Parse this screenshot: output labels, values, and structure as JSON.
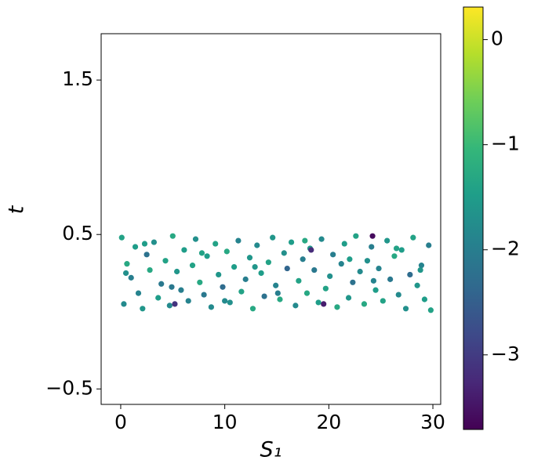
{
  "chart_data": {
    "type": "scatter",
    "xlabel": "S₁",
    "ylabel": "t",
    "xlim": [
      -1.88,
      30.75
    ],
    "ylim": [
      -0.6,
      1.8
    ],
    "xticks": [
      0,
      10,
      20,
      30
    ],
    "yticks": [
      {
        "value": -0.5,
        "label": "−0.5"
      },
      0.5,
      1.5
    ],
    "colormap": "viridis",
    "clim": [
      -3.71,
      0.31
    ],
    "cticks": [
      {
        "value": -3,
        "label": "−3"
      },
      {
        "value": -2,
        "label": "−2"
      },
      {
        "value": -1,
        "label": "−1"
      },
      0
    ],
    "x": [
      0.1,
      0.3,
      0.6,
      1.0,
      1.4,
      1.7,
      2.1,
      2.5,
      2.8,
      3.2,
      3.6,
      3.9,
      4.3,
      4.7,
      5.0,
      5.4,
      5.8,
      6.1,
      6.5,
      6.9,
      7.2,
      7.6,
      8.0,
      8.3,
      8.7,
      9.1,
      9.4,
      9.8,
      10.2,
      10.5,
      10.9,
      11.3,
      11.6,
      12.0,
      12.4,
      12.7,
      13.1,
      13.5,
      13.8,
      14.2,
      14.6,
      14.9,
      15.3,
      15.7,
      16.0,
      16.4,
      16.8,
      17.1,
      17.5,
      17.9,
      18.2,
      18.6,
      19.0,
      19.3,
      19.7,
      20.1,
      20.4,
      20.8,
      21.2,
      21.5,
      21.9,
      22.3,
      22.6,
      23.0,
      23.4,
      23.7,
      24.1,
      24.5,
      24.8,
      25.2,
      25.6,
      25.9,
      26.3,
      26.7,
      27.0,
      27.4,
      27.8,
      28.1,
      28.5,
      28.9,
      29.2,
      29.6,
      29.8,
      0.5,
      2.3,
      4.9,
      7.8,
      10.0,
      12.9,
      15.1,
      17.7,
      19.5,
      22.0,
      24.3,
      26.5,
      28.8,
      5.2,
      18.3,
      24.2
    ],
    "values": [
      0.48,
      0.05,
      0.31,
      0.22,
      0.42,
      0.12,
      0.02,
      0.37,
      0.27,
      0.45,
      0.09,
      0.18,
      0.33,
      0.04,
      0.49,
      0.26,
      0.14,
      0.4,
      0.07,
      0.3,
      0.47,
      0.19,
      0.11,
      0.36,
      0.03,
      0.44,
      0.24,
      0.16,
      0.39,
      0.06,
      0.29,
      0.46,
      0.13,
      0.21,
      0.35,
      0.02,
      0.43,
      0.25,
      0.1,
      0.32,
      0.48,
      0.17,
      0.08,
      0.38,
      0.28,
      0.45,
      0.04,
      0.2,
      0.34,
      0.12,
      0.41,
      0.27,
      0.06,
      0.47,
      0.15,
      0.23,
      0.37,
      0.03,
      0.31,
      0.44,
      0.09,
      0.19,
      0.49,
      0.26,
      0.05,
      0.33,
      0.42,
      0.14,
      0.28,
      0.07,
      0.46,
      0.21,
      0.36,
      0.11,
      0.4,
      0.02,
      0.24,
      0.48,
      0.17,
      0.3,
      0.08,
      0.43,
      0.01,
      0.25,
      0.44,
      0.16,
      0.38,
      0.07,
      0.29,
      0.12,
      0.46,
      0.05,
      0.34,
      0.2,
      0.41,
      0.27,
      0.05,
      0.4,
      0.49
    ],
    "color_values": [
      -1.4,
      -1.8,
      -1.3,
      -2.0,
      -1.5,
      -1.9,
      -1.6,
      -2.2,
      -1.3,
      -1.7,
      -1.5,
      -2.1,
      -1.4,
      -1.8,
      -1.3,
      -1.6,
      -2.0,
      -1.5,
      -1.9,
      -1.4,
      -1.7,
      -1.3,
      -2.1,
      -1.5,
      -1.8,
      -1.4,
      -1.6,
      -2.3,
      -1.3,
      -1.7,
      -1.5,
      -1.9,
      -1.4,
      -2.0,
      -1.6,
      -1.3,
      -1.8,
      -1.5,
      -2.2,
      -1.4,
      -1.6,
      -1.9,
      -1.3,
      -1.7,
      -2.4,
      -1.5,
      -1.8,
      -1.4,
      -2.0,
      -1.3,
      -1.6,
      -2.1,
      -1.5,
      -1.8,
      -1.4,
      -1.7,
      -2.0,
      -1.3,
      -1.9,
      -1.5,
      -1.6,
      -2.2,
      -1.4,
      -1.8,
      -1.3,
      -1.7,
      -2.0,
      -1.5,
      -1.9,
      -1.4,
      -1.6,
      -2.1,
      -1.3,
      -1.8,
      -1.5,
      -1.7,
      -2.3,
      -1.4,
      -1.6,
      -1.9,
      -1.5,
      -2.0,
      -1.4,
      -1.7,
      -1.5,
      -2.1,
      -1.4,
      -1.8,
      -1.6,
      -2.0,
      -1.3,
      -3.4,
      -1.5,
      -1.9,
      -1.4,
      -1.6,
      -3.1,
      -3.2,
      -3.6
    ]
  }
}
